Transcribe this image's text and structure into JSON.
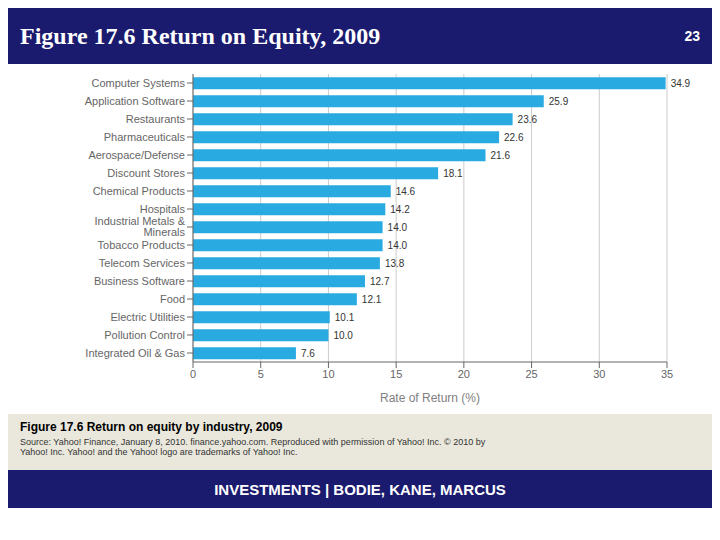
{
  "chart_data": {
    "type": "bar",
    "orientation": "horizontal",
    "title": "Figure 17.6 Return on Equity, 2009",
    "annotations": [
      "23",
      "Figure 17.6  Return on equity by industry, 2009",
      "Source: Yahoo! Finance, January 8, 2010. finance.yahoo.com. Reproduced with permission of Yahoo! Inc. © 2010 by\nYahoo! Inc. Yahoo! and the Yahoo! logo are trademarks of Yahoo! Inc.",
      "INVESTMENTS | BODIE, KANE, MARCUS"
    ],
    "categories": [
      "Computer Systems",
      "Application Software",
      "Restaurants",
      "Pharmaceuticals",
      "Aerospace/Defense",
      "Discount Stores",
      "Chemical Products",
      "Hospitals",
      "Industrial Metals & Minerals",
      "Tobacco Products",
      "Telecom Services",
      "Business Software",
      "Food",
      "Electric Utilities",
      "Pollution Control",
      "Integrated Oil & Gas"
    ],
    "values": [
      34.9,
      25.9,
      23.6,
      22.6,
      21.6,
      18.1,
      14.6,
      14.2,
      14.0,
      14.0,
      13.8,
      12.7,
      12.1,
      10.1,
      10.0,
      7.6
    ],
    "value_labels": [
      "34.9",
      "25.9",
      "23.6",
      "22.6",
      "21.6",
      "18.1",
      "14.6",
      "14.2",
      "14.0",
      "14.0",
      "13.8",
      "12.7",
      "12.1",
      "10.1",
      "10.0",
      "7.6"
    ],
    "data_labels": true,
    "color": "#29ABE2",
    "xlabel": "Rate of Return (%)",
    "xlim": [
      0,
      35
    ],
    "xticks": [
      0,
      5,
      10,
      15,
      20,
      25,
      30,
      35
    ],
    "grid": true
  }
}
